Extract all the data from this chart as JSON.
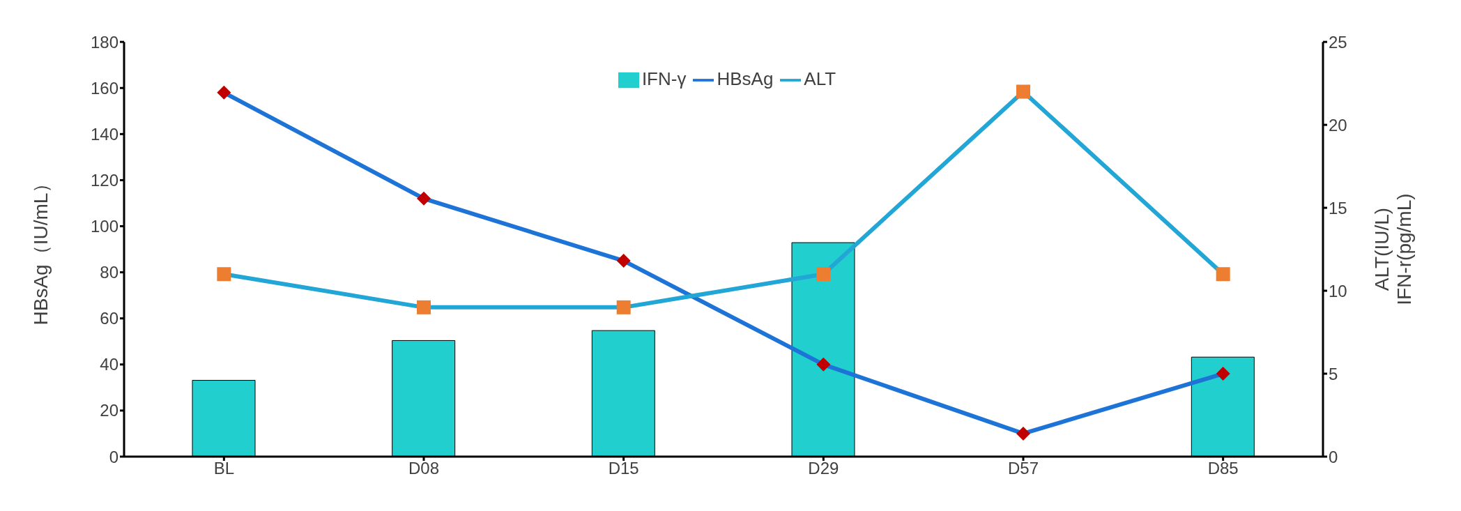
{
  "chart_data": {
    "type": "bar",
    "categories": [
      "BL",
      "D08",
      "D15",
      "D29",
      "D57",
      "D85"
    ],
    "ylabel": "HBsAg（IU/mL）",
    "y2label": "ALT(IU/L)\nIFN-r(pg/mL)",
    "ylim": [
      0,
      180
    ],
    "yticks": [
      0,
      20,
      40,
      60,
      80,
      100,
      120,
      140,
      160,
      180
    ],
    "y2lim": [
      0,
      25
    ],
    "y2ticks": [
      0,
      5,
      10,
      15,
      20,
      25
    ],
    "legend": "top",
    "grid": false,
    "series": [
      {
        "name": "IFN-γ",
        "axis": "y2",
        "color": "#22cfcf",
        "values": [
          4.6,
          7.0,
          7.6,
          12.9,
          null,
          6.0
        ]
      },
      {
        "name": "HBsAg",
        "type": "line",
        "axis": "y",
        "color": "#1e74d6",
        "marker": "diamond",
        "colors": [
          "#c00000",
          "#c00000",
          "#c00000",
          "#c00000",
          "#c00000",
          "#c00000"
        ],
        "values": [
          158,
          112,
          85,
          40,
          10,
          36
        ]
      },
      {
        "name": "ALT",
        "type": "line",
        "axis": "y2",
        "color": "#22a6d6",
        "marker": "square",
        "colors": [
          "#ed7d31",
          "#ed7d31",
          "#ed7d31",
          "#ed7d31",
          "#ed7d31",
          "#ed7d31"
        ],
        "values": [
          11,
          9,
          9,
          11,
          22,
          11
        ]
      }
    ]
  }
}
